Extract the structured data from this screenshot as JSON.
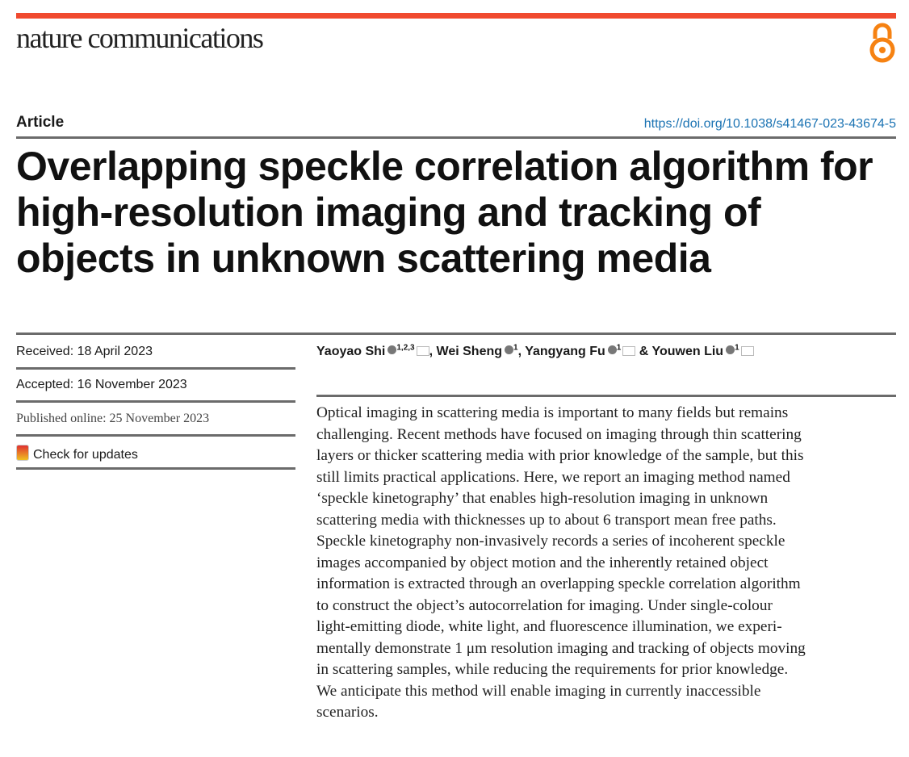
{
  "header": {
    "journal": "nature communications",
    "open_access_icon": "open-access-icon",
    "accent_color": "#f04a2f"
  },
  "article_type": "Article",
  "doi": "https://doi.org/10.1038/s41467-023-43674-5",
  "title": "Overlapping speckle correlation algorithm for high-resolution imaging and tracking of objects in unknown scattering media",
  "dates": {
    "received": "Received: 18 April 2023",
    "accepted": "Accepted: 16 November 2023",
    "published": "Published online: 25 November 2023"
  },
  "check_updates": "Check for updates",
  "authors": [
    {
      "name": "Yaoyao Shi",
      "aff": "1,2,3",
      "sep": ", "
    },
    {
      "name": "Wei Sheng",
      "aff": "1",
      "sep": ", "
    },
    {
      "name": "Yangyang Fu",
      "aff": "1",
      "sep": " & "
    },
    {
      "name": "Youwen Liu",
      "aff": "1",
      "sep": ""
    }
  ],
  "abstract_lines": [
    "Optical imaging in scattering media is important to many fields but remains",
    "challenging. Recent methods have focused on imaging through thin scattering",
    "layers or thicker scattering media with prior knowledge of the sample, but this",
    "still limits practical applications. Here, we report an imaging method named",
    "‘speckle kinetography’ that enables high-resolution imaging in unknown",
    "scattering media with thicknesses up to about 6 transport mean free paths.",
    "Speckle kinetography non-invasively records a series of incoherent speckle",
    "images accompanied by object motion and the inherently retained object",
    "information is extracted through an overlapping speckle correlation algorithm",
    "to construct the object’s autocorrelation for imaging. Under single-colour",
    "light-emitting diode, white light, and fluorescence illumination, we experi-",
    "mentally demonstrate 1 μm resolution imaging and tracking of objects moving",
    "in scattering samples, while reducing the requirements for prior knowledge.",
    "We anticipate this method will enable imaging in currently inaccessible",
    "scenarios."
  ]
}
